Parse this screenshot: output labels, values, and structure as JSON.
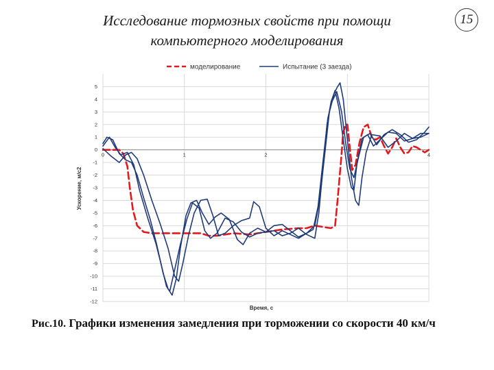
{
  "slide": {
    "title_line1": "Исследование тормозных свойств при помощи",
    "title_line2": "компьютерного моделирования",
    "page_number": "15",
    "caption_label": "Рис.10.",
    "caption_text": "Графики изменения замедления при торможении со скорости 40 км/ч"
  },
  "chart_data": {
    "type": "line",
    "xlabel": "Время, с",
    "ylabel": "Ускорение, м/с2",
    "xlim": [
      0,
      4
    ],
    "ylim": [
      -12,
      6
    ],
    "x_ticks": [
      0,
      1,
      2,
      3,
      4
    ],
    "x_tick_labels": [
      "0",
      "1",
      "2",
      "",
      "4"
    ],
    "y_ticks": [
      5,
      4,
      3,
      2,
      1,
      0,
      -1,
      -2,
      -3,
      -4,
      -5,
      -6,
      -7,
      -8,
      -9,
      -10,
      -11,
      -12
    ],
    "y_tick_labels": [
      "5",
      "4",
      "3",
      "2",
      "1",
      "0",
      "-1",
      "-2",
      "-3",
      "-4",
      "-5",
      "-6",
      "-7",
      "-8",
      "-9",
      "-10",
      "-11",
      "-12"
    ],
    "grid": true,
    "legend_position": "top",
    "colors": {
      "model": "#e31a1c",
      "test": "#1f3a78",
      "grid": "#d9d9d9"
    },
    "legend": [
      {
        "label": "моделирование",
        "style": "dashed",
        "color": "#e31a1c"
      },
      {
        "label": "Испытание (3 заезда)",
        "style": "solid",
        "color": "#1f3a78"
      }
    ],
    "series": [
      {
        "name": "моделирование",
        "style": "dashed",
        "points": [
          [
            0,
            0
          ],
          [
            0.15,
            0
          ],
          [
            0.2,
            0
          ],
          [
            0.25,
            -0.3
          ],
          [
            0.3,
            -1.3
          ],
          [
            0.33,
            -3
          ],
          [
            0.37,
            -4.8
          ],
          [
            0.42,
            -6
          ],
          [
            0.5,
            -6.5
          ],
          [
            0.6,
            -6.6
          ],
          [
            0.8,
            -6.6
          ],
          [
            1.0,
            -6.6
          ],
          [
            1.2,
            -6.6
          ],
          [
            1.3,
            -6.8
          ],
          [
            1.4,
            -6.8
          ],
          [
            1.6,
            -6.6
          ],
          [
            1.8,
            -6.7
          ],
          [
            2.0,
            -6.5
          ],
          [
            2.2,
            -6.3
          ],
          [
            2.4,
            -6.2
          ],
          [
            2.5,
            -6.2
          ],
          [
            2.6,
            -6.0
          ],
          [
            2.7,
            -6.1
          ],
          [
            2.8,
            -6.2
          ],
          [
            2.85,
            -6.0
          ],
          [
            2.88,
            -4.0
          ],
          [
            2.92,
            -1.0
          ],
          [
            2.95,
            1.4
          ],
          [
            2.98,
            2.0
          ],
          [
            3.0,
            2.0
          ],
          [
            3.03,
            0.2
          ],
          [
            3.06,
            -1.6
          ],
          [
            3.1,
            -1.2
          ],
          [
            3.15,
            0.6
          ],
          [
            3.2,
            1.8
          ],
          [
            3.25,
            2.0
          ],
          [
            3.3,
            1.0
          ],
          [
            3.35,
            0.8
          ],
          [
            3.4,
            1.0
          ],
          [
            3.45,
            0.3
          ],
          [
            3.5,
            -0.3
          ],
          [
            3.55,
            0.2
          ],
          [
            3.6,
            0.9
          ],
          [
            3.65,
            0.2
          ],
          [
            3.7,
            -0.3
          ],
          [
            3.75,
            -0.2
          ],
          [
            3.8,
            0.3
          ],
          [
            3.85,
            0.2
          ],
          [
            3.9,
            0.0
          ],
          [
            3.95,
            -0.2
          ],
          [
            4.0,
            0.0
          ]
        ]
      },
      {
        "name": "",
        "style": "solid",
        "points": [
          [
            0,
            0.3
          ],
          [
            0.08,
            1.0
          ],
          [
            0.15,
            0.2
          ],
          [
            0.22,
            -0.4
          ],
          [
            0.3,
            -0.2
          ],
          [
            0.38,
            -1.2
          ],
          [
            0.45,
            -3.2
          ],
          [
            0.55,
            -5.4
          ],
          [
            0.65,
            -7.4
          ],
          [
            0.72,
            -9.2
          ],
          [
            0.78,
            -10.8
          ],
          [
            0.82,
            -11.2
          ],
          [
            0.88,
            -9.5
          ],
          [
            0.95,
            -7.5
          ],
          [
            1.03,
            -5.5
          ],
          [
            1.1,
            -4.2
          ],
          [
            1.18,
            -4.6
          ],
          [
            1.25,
            -6.4
          ],
          [
            1.32,
            -7.0
          ],
          [
            1.4,
            -6.6
          ],
          [
            1.5,
            -5.4
          ],
          [
            1.6,
            -5.7
          ],
          [
            1.7,
            -6.5
          ],
          [
            1.8,
            -6.9
          ],
          [
            1.9,
            -6.6
          ],
          [
            2.0,
            -6.5
          ],
          [
            2.1,
            -6.4
          ],
          [
            2.2,
            -6.8
          ],
          [
            2.3,
            -6.6
          ],
          [
            2.4,
            -6.2
          ],
          [
            2.5,
            -6.7
          ],
          [
            2.6,
            -7.0
          ],
          [
            2.65,
            -5.0
          ],
          [
            2.7,
            -1.5
          ],
          [
            2.75,
            2.0
          ],
          [
            2.8,
            3.8
          ],
          [
            2.85,
            4.7
          ],
          [
            2.9,
            3.2
          ],
          [
            2.95,
            0.8
          ],
          [
            3.0,
            -1.5
          ],
          [
            3.05,
            -3.0
          ],
          [
            3.08,
            -3.2
          ],
          [
            3.12,
            -1.0
          ],
          [
            3.18,
            0.9
          ],
          [
            3.25,
            1.2
          ],
          [
            3.32,
            0.3
          ],
          [
            3.4,
            0.8
          ],
          [
            3.5,
            1.4
          ],
          [
            3.6,
            1.3
          ],
          [
            3.7,
            0.7
          ],
          [
            3.8,
            0.9
          ],
          [
            3.9,
            1.3
          ],
          [
            4.0,
            1.3
          ]
        ]
      },
      {
        "name": "",
        "style": "solid",
        "points": [
          [
            0,
            0.5
          ],
          [
            0.05,
            1.0
          ],
          [
            0.12,
            0.8
          ],
          [
            0.2,
            -0.3
          ],
          [
            0.28,
            -0.8
          ],
          [
            0.35,
            -1.0
          ],
          [
            0.42,
            -2.0
          ],
          [
            0.5,
            -3.8
          ],
          [
            0.58,
            -5.5
          ],
          [
            0.66,
            -7.5
          ],
          [
            0.74,
            -9.8
          ],
          [
            0.8,
            -11.0
          ],
          [
            0.85,
            -11.5
          ],
          [
            0.9,
            -10.2
          ],
          [
            0.95,
            -7.8
          ],
          [
            1.02,
            -5.2
          ],
          [
            1.08,
            -4.2
          ],
          [
            1.15,
            -4.0
          ],
          [
            1.22,
            -5.0
          ],
          [
            1.3,
            -5.9
          ],
          [
            1.38,
            -5.3
          ],
          [
            1.45,
            -5.0
          ],
          [
            1.55,
            -5.5
          ],
          [
            1.65,
            -7.1
          ],
          [
            1.72,
            -7.5
          ],
          [
            1.8,
            -6.6
          ],
          [
            1.9,
            -6.2
          ],
          [
            2.0,
            -6.5
          ],
          [
            2.1,
            -6.0
          ],
          [
            2.2,
            -5.9
          ],
          [
            2.3,
            -6.4
          ],
          [
            2.4,
            -6.9
          ],
          [
            2.5,
            -6.6
          ],
          [
            2.6,
            -6.0
          ],
          [
            2.66,
            -4.0
          ],
          [
            2.72,
            -0.5
          ],
          [
            2.78,
            3.0
          ],
          [
            2.84,
            4.5
          ],
          [
            2.88,
            5.0
          ],
          [
            2.91,
            5.3
          ],
          [
            2.95,
            4.0
          ],
          [
            3.0,
            0.8
          ],
          [
            3.05,
            -2.2
          ],
          [
            3.1,
            -4.0
          ],
          [
            3.14,
            -4.4
          ],
          [
            3.18,
            -2.2
          ],
          [
            3.23,
            -0.2
          ],
          [
            3.3,
            1.2
          ],
          [
            3.4,
            1.1
          ],
          [
            3.5,
            0.2
          ],
          [
            3.6,
            0.7
          ],
          [
            3.7,
            1.3
          ],
          [
            3.8,
            0.9
          ],
          [
            3.9,
            1.0
          ],
          [
            4.0,
            1.3
          ]
        ]
      },
      {
        "name": "",
        "style": "solid",
        "points": [
          [
            0,
            0.1
          ],
          [
            0.1,
            -0.5
          ],
          [
            0.2,
            -1.0
          ],
          [
            0.28,
            -0.4
          ],
          [
            0.35,
            -0.2
          ],
          [
            0.42,
            -0.7
          ],
          [
            0.5,
            -2.0
          ],
          [
            0.6,
            -4.0
          ],
          [
            0.7,
            -5.8
          ],
          [
            0.8,
            -7.8
          ],
          [
            0.88,
            -10.0
          ],
          [
            0.93,
            -10.4
          ],
          [
            0.98,
            -9.0
          ],
          [
            1.05,
            -6.8
          ],
          [
            1.12,
            -5.0
          ],
          [
            1.2,
            -4.0
          ],
          [
            1.28,
            -3.9
          ],
          [
            1.35,
            -5.2
          ],
          [
            1.42,
            -6.8
          ],
          [
            1.5,
            -6.6
          ],
          [
            1.6,
            -6.0
          ],
          [
            1.7,
            -5.6
          ],
          [
            1.8,
            -5.4
          ],
          [
            1.85,
            -4.1
          ],
          [
            1.92,
            -4.5
          ],
          [
            2.0,
            -6.2
          ],
          [
            2.1,
            -6.8
          ],
          [
            2.2,
            -6.4
          ],
          [
            2.3,
            -6.7
          ],
          [
            2.4,
            -7.0
          ],
          [
            2.5,
            -6.6
          ],
          [
            2.58,
            -6.3
          ],
          [
            2.64,
            -4.5
          ],
          [
            2.7,
            -1.0
          ],
          [
            2.76,
            2.5
          ],
          [
            2.81,
            3.8
          ],
          [
            2.87,
            4.6
          ],
          [
            2.93,
            3.0
          ],
          [
            2.98,
            0.5
          ],
          [
            3.03,
            -1.5
          ],
          [
            3.08,
            -2.2
          ],
          [
            3.14,
            -0.5
          ],
          [
            3.2,
            1.0
          ],
          [
            3.28,
            1.3
          ],
          [
            3.36,
            0.4
          ],
          [
            3.45,
            1.2
          ],
          [
            3.55,
            1.6
          ],
          [
            3.65,
            1.2
          ],
          [
            3.75,
            0.6
          ],
          [
            3.85,
            0.8
          ],
          [
            3.95,
            1.4
          ],
          [
            4.0,
            1.8
          ]
        ]
      }
    ]
  }
}
